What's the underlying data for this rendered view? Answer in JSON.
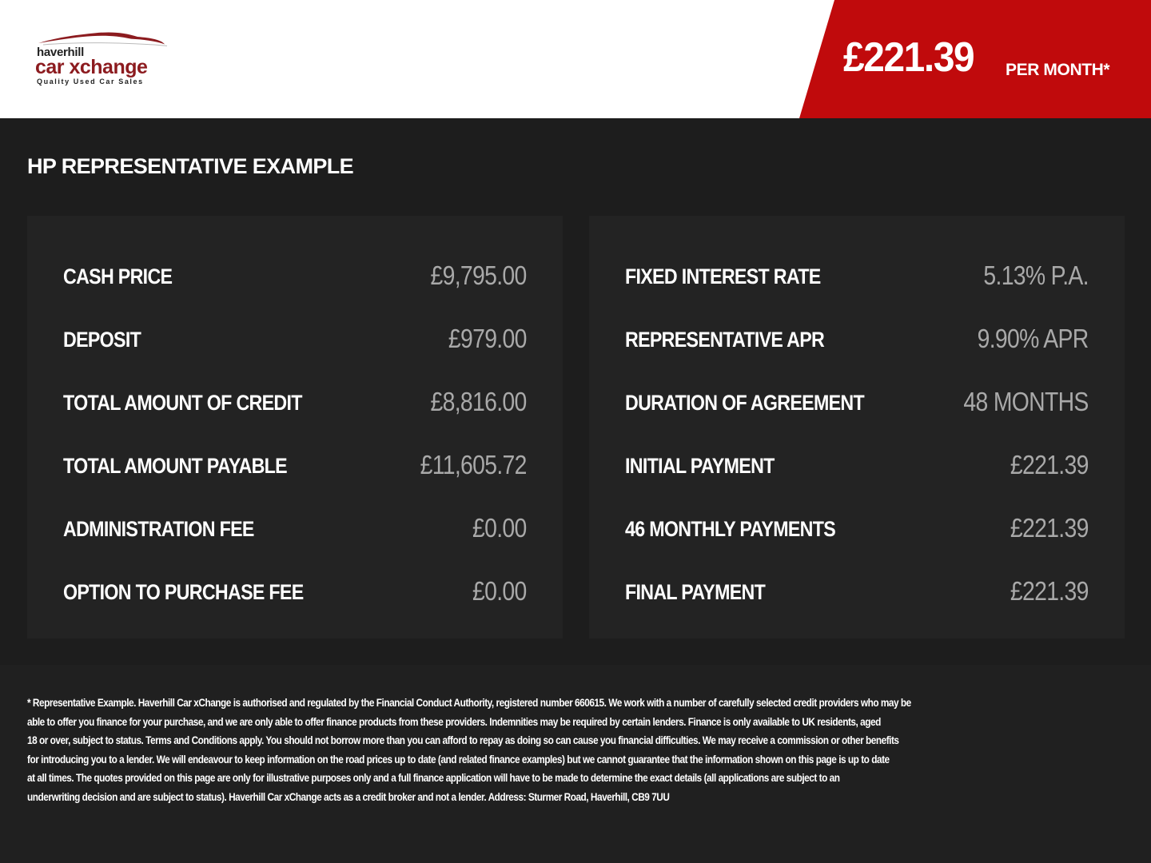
{
  "header": {
    "logo": {
      "line1": "haverhill",
      "line2": "car xchange",
      "tagline": "Quality Used Car Sales"
    },
    "price": "£221.39",
    "price_suffix": "PER MONTH*",
    "banner_color": "#c00a0c",
    "logo_color": "#8c1b1f"
  },
  "title": "HP REPRESENTATIVE EXAMPLE",
  "left_rows": [
    {
      "label": "CASH PRICE",
      "value": "£9,795.00"
    },
    {
      "label": "DEPOSIT",
      "value": "£979.00"
    },
    {
      "label": "TOTAL AMOUNT OF CREDIT",
      "value": "£8,816.00"
    },
    {
      "label": "TOTAL AMOUNT PAYABLE",
      "value": "£11,605.72"
    },
    {
      "label": "ADMINISTRATION FEE",
      "value": "£0.00"
    },
    {
      "label": "OPTION TO PURCHASE FEE",
      "value": "£0.00"
    }
  ],
  "right_rows": [
    {
      "label": "FIXED INTEREST RATE",
      "value": "5.13% P.A."
    },
    {
      "label": "REPRESENTATIVE APR",
      "value": "9.90% APR"
    },
    {
      "label": "DURATION OF AGREEMENT",
      "value": "48 MONTHS"
    },
    {
      "label": "INITIAL PAYMENT",
      "value": "£221.39"
    },
    {
      "label": "46 MONTHLY PAYMENTS",
      "value": "£221.39"
    },
    {
      "label": "FINAL PAYMENT",
      "value": "£221.39"
    }
  ],
  "disclaimer": [
    "* Representative Example. Haverhill Car xChange is authorised and regulated by the Financial Conduct Authority, registered number 660615. We work with a number of carefully selected credit providers who may be",
    "able to offer you finance for your purchase, and we are only able to offer finance products from these providers. Indemnities may be required by certain lenders. Finance is only available to UK residents, aged",
    "18 or over, subject to status. Terms and Conditions apply. You should not borrow more than you can afford to repay as doing so can cause you financial difficulties. We may receive a commission or other benefits",
    "for introducing you to a lender. We will endeavour to keep information on the road prices up to date (and related finance examples) but we cannot guarantee that the information shown on this page is up to date",
    "at all times. The quotes provided on this page are only for illustrative purposes only and a full finance application will have to be made to determine the exact details (all applications are subject to an",
    "underwriting decision and are subject to status). Haverhill Car xChange acts as a credit broker and not a lender. Address: Sturmer Road, Haverhill, CB9 7UU"
  ]
}
